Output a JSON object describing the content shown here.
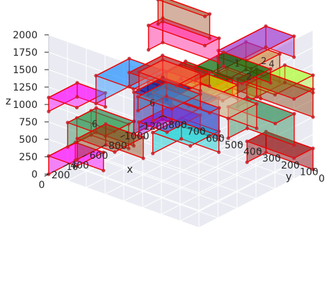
{
  "chart_data": {
    "type": "3d-box-packing",
    "axes": {
      "x": {
        "label": "x",
        "ticks": [
          0,
          200,
          400,
          600,
          800,
          1000,
          1200
        ],
        "range": [
          0,
          1200
        ]
      },
      "y": {
        "label": "y",
        "ticks": [
          0,
          100,
          200,
          300,
          400,
          500,
          600,
          700,
          800
        ],
        "range": [
          0,
          800
        ]
      },
      "z": {
        "label": "z",
        "ticks": [
          0,
          250,
          500,
          750,
          1000,
          1250,
          1500,
          1750,
          2000
        ],
        "range": [
          0,
          2000
        ]
      }
    },
    "grid": true,
    "boxes": [
      {
        "x": [
          0,
          280
        ],
        "y": [
          650,
          800
        ],
        "z": [
          0,
          260
        ],
        "color": "#ff00ff"
      },
      {
        "x": [
          0,
          300
        ],
        "y": [
          650,
          800
        ],
        "z": [
          900,
          1100
        ],
        "color": "#ff00ff"
      },
      {
        "x": [
          200,
          500
        ],
        "y": [
          600,
          800
        ],
        "z": [
          250,
          600
        ],
        "color": "#2e8b57"
      },
      {
        "x": [
          250,
          650
        ],
        "y": [
          0,
          180
        ],
        "z": [
          1400,
          1650
        ],
        "color": "#8b4513"
      },
      {
        "x": [
          300,
          650
        ],
        "y": [
          500,
          700
        ],
        "z": [
          900,
          1300
        ],
        "color": "#1e90ff"
      },
      {
        "x": [
          300,
          600
        ],
        "y": [
          600,
          800
        ],
        "z": [
          0,
          300
        ],
        "color": "#8b4513"
      },
      {
        "x": [
          500,
          1000
        ],
        "y": [
          0,
          150
        ],
        "z": [
          1750,
          2050
        ],
        "color": "#9932cc"
      },
      {
        "x": [
          550,
          850
        ],
        "y": [
          0,
          180
        ],
        "z": [
          1500,
          1900
        ],
        "color": "#cd853f"
      },
      {
        "x": [
          600,
          900
        ],
        "y": [
          350,
          650
        ],
        "z": [
          300,
          900
        ],
        "color": "#00008b"
      },
      {
        "x": [
          650,
          1000
        ],
        "y": [
          450,
          700
        ],
        "z": [
          900,
          1100
        ],
        "color": "#b22222"
      },
      {
        "x": [
          700,
          1000
        ],
        "y": [
          400,
          600
        ],
        "z": [
          0,
          300
        ],
        "color": "#00ced1"
      },
      {
        "x": [
          750,
          1050
        ],
        "y": [
          150,
          400
        ],
        "z": [
          1200,
          1400
        ],
        "color": "#006400"
      },
      {
        "x": [
          800,
          1200
        ],
        "y": [
          0,
          150
        ],
        "z": [
          1100,
          1350
        ],
        "color": "#adff2f"
      },
      {
        "x": [
          850,
          1200
        ],
        "y": [
          600,
          750
        ],
        "z": [
          0,
          200
        ],
        "color": "#9400d3"
      },
      {
        "x": [
          900,
          1200
        ],
        "y": [
          300,
          600
        ],
        "z": [
          300,
          650
        ],
        "color": "#d2b48c"
      },
      {
        "x": [
          900,
          1200
        ],
        "y": [
          600,
          780
        ],
        "z": [
          300,
          500
        ],
        "color": "#4682b4"
      },
      {
        "x": [
          950,
          1200
        ],
        "y": [
          600,
          800
        ],
        "z": [
          550,
          800
        ],
        "color": "#ff6347"
      },
      {
        "x": [
          1000,
          1200
        ],
        "y": [
          0,
          300
        ],
        "z": [
          750,
          1150
        ],
        "color": "#8b4513"
      },
      {
        "x": [
          1000,
          1200
        ],
        "y": [
          100,
          350
        ],
        "z": [
          250,
          700
        ],
        "color": "#2e8b57"
      },
      {
        "x": [
          1000,
          1200
        ],
        "y": [
          0,
          250
        ],
        "z": [
          0,
          300
        ],
        "color": "#8b0000"
      },
      {
        "x": [
          1050,
          1200
        ],
        "y": [
          500,
          800
        ],
        "z": [
          1050,
          1400
        ],
        "color": "#ff1493"
      },
      {
        "x": [
          1100,
          1200
        ],
        "y": [
          500,
          800
        ],
        "z": [
          0,
          400
        ],
        "color": "#4169e1"
      },
      {
        "x": [
          1150,
          1200
        ],
        "y": [
          550,
          800
        ],
        "z": [
          1350,
          1700
        ],
        "color": "#a0522d"
      },
      {
        "x": [
          0,
          150
        ],
        "y": [
          450,
          650
        ],
        "z": [
          600,
          950
        ],
        "color": "#98fb98"
      },
      {
        "x": [
          350,
          650
        ],
        "y": [
          150,
          400
        ],
        "z": [
          1300,
          1550
        ],
        "color": "#006400"
      },
      {
        "x": [
          450,
          800
        ],
        "y": [
          200,
          500
        ],
        "z": [
          1100,
          1300
        ],
        "color": "#ffd700"
      }
    ],
    "labels": [
      {
        "text": "1",
        "at": [
          600,
          100,
          1800
        ]
      },
      {
        "text": "2",
        "at": [
          880,
          100,
          1640
        ]
      },
      {
        "text": "6",
        "at": [
          300,
          400,
          1150
        ]
      },
      {
        "text": "6",
        "at": [
          10,
          560,
          900
        ]
      },
      {
        "text": "16",
        "at": [
          50,
          700,
          120
        ]
      },
      {
        "text": "4",
        "at": [
          1160,
          200,
          1300
        ]
      },
      {
        "text": "2",
        "at": [
          1120,
          300,
          1050
        ]
      }
    ]
  }
}
